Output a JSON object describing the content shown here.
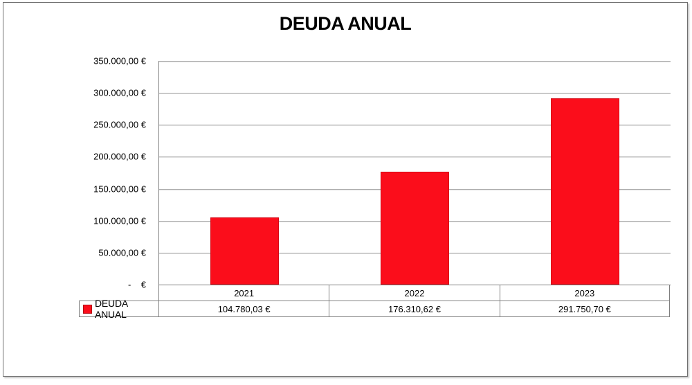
{
  "title": "DEUDA ANUAL",
  "legend": {
    "label": "DEUDA ANUAL",
    "marker_color": "#fb0d1b"
  },
  "chart_data": {
    "type": "bar",
    "title": "DEUDA ANUAL",
    "categories": [
      "2021",
      "2022",
      "2023"
    ],
    "series": [
      {
        "name": "DEUDA ANUAL",
        "values": [
          104780.03,
          176310.62,
          291750.7
        ],
        "color": "#fb0d1b"
      }
    ],
    "value_labels": [
      "104.780,03 €",
      "176.310,62 €",
      "291.750,70 €"
    ],
    "xlabel": "",
    "ylabel": "",
    "ylim": [
      0,
      350000
    ],
    "ytick_step": 50000,
    "ytick_values": [
      0,
      50000,
      100000,
      150000,
      200000,
      250000,
      300000,
      350000
    ],
    "ytick_labels": [
      "-    €",
      "50.000,00 €",
      "100.000,00 €",
      "150.000,00 €",
      "200.000,00 €",
      "250.000,00 €",
      "300.000,00 €",
      "350.000,00 €"
    ],
    "grid": true,
    "legend_position": "bottom-left-table"
  },
  "colors": {
    "bar_fill": "#fb0d1b",
    "bar_border": "#d40814",
    "gridline": "#adadad",
    "axis_line": "#808080",
    "table_border": "#7f7f7f",
    "text": "#000000",
    "background": "#ffffff"
  }
}
